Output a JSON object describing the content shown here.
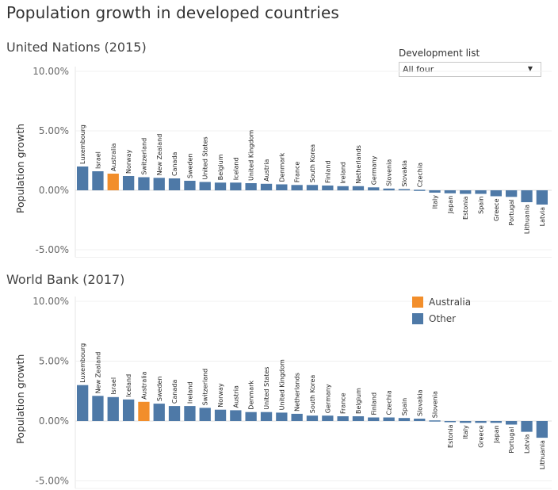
{
  "page": {
    "title": "Population growth in developed countries"
  },
  "filter": {
    "label": "Development list",
    "selected": "All four"
  },
  "legend": {
    "items": [
      {
        "label": "Australia",
        "color": "#f28e2b"
      },
      {
        "label": "Other",
        "color": "#4e79a7"
      }
    ]
  },
  "chart_data": [
    {
      "type": "bar",
      "title": "United Nations (2015)",
      "xlabel": "",
      "ylabel": "Population growth",
      "ylim": [
        -5.5,
        10.0
      ],
      "yticks": [
        10,
        5,
        0,
        -5
      ],
      "ytick_labels": [
        "10.00%",
        "5.00%",
        "0.00%",
        "-5.00%"
      ],
      "grid": true,
      "highlight": "Australia",
      "categories": [
        "Luxembourg",
        "Israel",
        "Australia",
        "Norway",
        "Switzerland",
        "New Zealand",
        "Canada",
        "Sweden",
        "United States",
        "Belgium",
        "Iceland",
        "United Kingdom",
        "Austria",
        "Denmark",
        "France",
        "South Korea",
        "Finland",
        "Ireland",
        "Netherlands",
        "Germany",
        "Slovenia",
        "Slovakia",
        "Czechia",
        "Italy",
        "Japan",
        "Estonia",
        "Spain",
        "Greece",
        "Portugal",
        "Lithuania",
        "Latvia"
      ],
      "values": [
        2.0,
        1.6,
        1.4,
        1.2,
        1.1,
        1.05,
        1.0,
        0.8,
        0.7,
        0.65,
        0.65,
        0.6,
        0.55,
        0.5,
        0.45,
        0.45,
        0.4,
        0.35,
        0.35,
        0.25,
        0.15,
        0.1,
        0.05,
        -0.2,
        -0.25,
        -0.3,
        -0.3,
        -0.5,
        -0.55,
        -1.0,
        -1.2
      ]
    },
    {
      "type": "bar",
      "title": "World Bank (2017)",
      "xlabel": "",
      "ylabel": "Population growth",
      "ylim": [
        -5.5,
        10.0
      ],
      "yticks": [
        10,
        5,
        0,
        -5
      ],
      "ytick_labels": [
        "10.00%",
        "5.00%",
        "0.00%",
        "-5.00%"
      ],
      "grid": true,
      "legend_position": "top-right",
      "highlight": "Australia",
      "categories": [
        "Luxembourg",
        "New Zealand",
        "Israel",
        "Iceland",
        "Australia",
        "Sweden",
        "Canada",
        "Ireland",
        "Switzerland",
        "Norway",
        "Austria",
        "Denmark",
        "United States",
        "United Kingdom",
        "Netherlands",
        "South Korea",
        "Germany",
        "France",
        "Belgium",
        "Finland",
        "Czechia",
        "Spain",
        "Slovakia",
        "Slovenia",
        "Estonia",
        "Italy",
        "Greece",
        "Japan",
        "Portugal",
        "Latvia",
        "Lithuania"
      ],
      "values": [
        3.0,
        2.1,
        2.0,
        1.8,
        1.6,
        1.45,
        1.25,
        1.25,
        1.1,
        0.95,
        0.9,
        0.75,
        0.75,
        0.7,
        0.6,
        0.45,
        0.45,
        0.4,
        0.4,
        0.3,
        0.3,
        0.25,
        0.2,
        0.05,
        -0.05,
        -0.15,
        -0.15,
        -0.15,
        -0.3,
        -0.9,
        -1.4
      ]
    }
  ]
}
